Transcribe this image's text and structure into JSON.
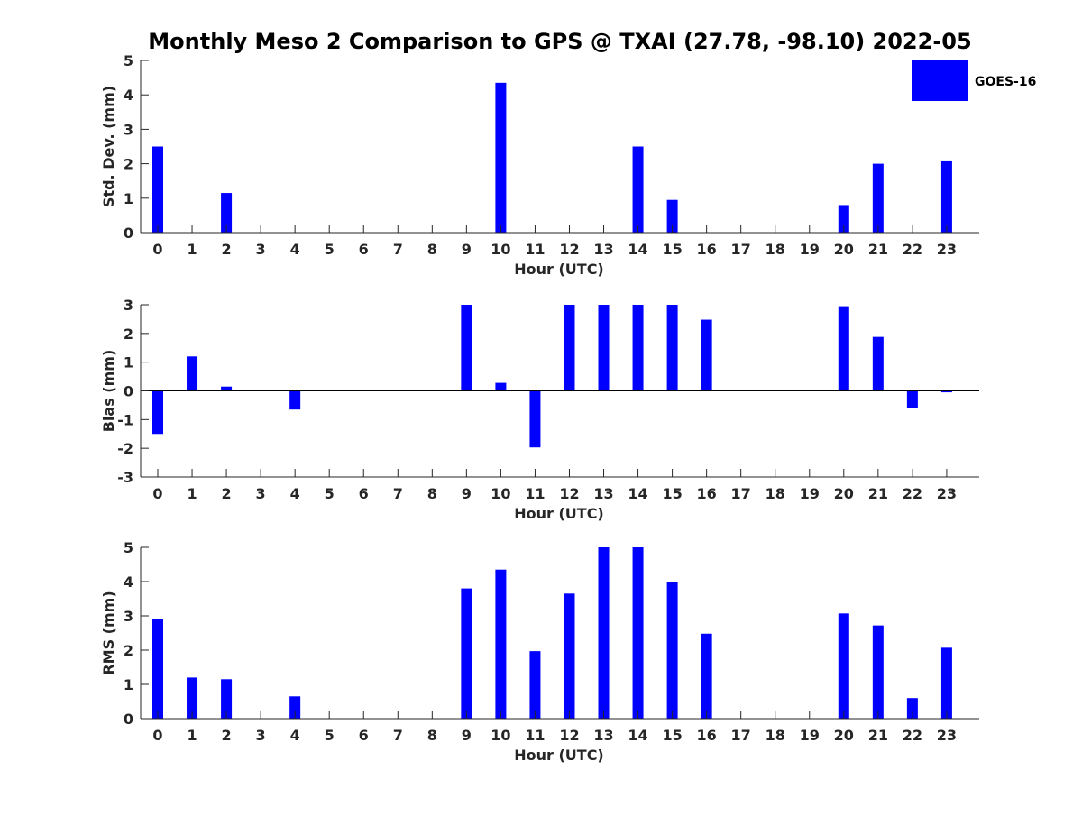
{
  "colors": {
    "bar": "#0000ff",
    "axis": "#262626",
    "text": "#262626"
  },
  "chart_data": {
    "title": "Monthly Meso 2 Comparison to GPS @ TXAI (27.78, -98.10) 2022-05",
    "legend": {
      "label": "GOES-16",
      "placement": "top-right"
    },
    "categories": [
      "0",
      "1",
      "2",
      "3",
      "4",
      "5",
      "6",
      "7",
      "8",
      "9",
      "10",
      "11",
      "12",
      "13",
      "14",
      "15",
      "16",
      "17",
      "18",
      "19",
      "20",
      "21",
      "22",
      "23"
    ],
    "panels": [
      {
        "type": "bar",
        "ylabel": "Std. Dev. (mm)",
        "xlabel": "Hour (UTC)",
        "ylim": [
          0,
          5
        ],
        "yticks": [
          "0",
          "1",
          "2",
          "3",
          "4",
          "5"
        ],
        "series": [
          {
            "name": "GOES-16",
            "values": [
              2.5,
              null,
              1.15,
              null,
              null,
              null,
              null,
              null,
              null,
              null,
              4.35,
              null,
              null,
              null,
              2.5,
              0.95,
              null,
              null,
              null,
              null,
              0.8,
              2.0,
              null,
              2.07
            ]
          }
        ]
      },
      {
        "type": "bar",
        "ylabel": "Bias (mm)",
        "xlabel": "Hour (UTC)",
        "ylim": [
          -3,
          3
        ],
        "yticks": [
          "-3",
          "-2",
          "-1",
          "0",
          "1",
          "2",
          "3"
        ],
        "series": [
          {
            "name": "GOES-16",
            "values": [
              -1.5,
              1.2,
              0.15,
              null,
              -0.65,
              null,
              null,
              null,
              null,
              3.0,
              0.28,
              -1.97,
              3.0,
              3.0,
              3.0,
              3.0,
              2.48,
              null,
              null,
              null,
              2.95,
              1.88,
              -0.6,
              -0.05
            ]
          }
        ]
      },
      {
        "type": "bar",
        "ylabel": "RMS (mm)",
        "xlabel": "Hour (UTC)",
        "ylim": [
          0,
          5
        ],
        "yticks": [
          "0",
          "1",
          "2",
          "3",
          "4",
          "5"
        ],
        "series": [
          {
            "name": "GOES-16",
            "values": [
              2.9,
              1.2,
              1.15,
              null,
              0.65,
              null,
              null,
              null,
              null,
              3.8,
              4.35,
              1.97,
              3.65,
              5.0,
              5.0,
              4.0,
              2.48,
              null,
              null,
              null,
              3.07,
              2.72,
              0.6,
              2.07
            ]
          }
        ]
      }
    ]
  }
}
